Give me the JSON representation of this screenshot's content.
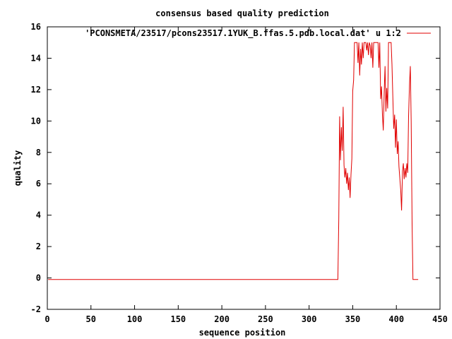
{
  "chart_data": {
    "type": "line",
    "title": "consensus based quality prediction",
    "xlabel": "sequence position",
    "ylabel": "quality",
    "xlim": [
      0,
      450
    ],
    "ylim": [
      -2,
      16
    ],
    "xticks": [
      0,
      50,
      100,
      150,
      200,
      250,
      300,
      350,
      400,
      450
    ],
    "yticks": [
      -2,
      0,
      2,
      4,
      6,
      8,
      10,
      12,
      14,
      16
    ],
    "grid": false,
    "legend": "top-right",
    "series": [
      {
        "name": "'PCONSMETA/23517/pcons23517.1YUK_B.ffas.5.pdb.local.dat' u 1:2",
        "color": "#e00000",
        "points": [
          [
            1,
            -0.1
          ],
          [
            333,
            -0.1
          ],
          [
            334,
            3.8
          ],
          [
            335,
            10.3
          ],
          [
            336,
            7.5
          ],
          [
            337,
            9.6
          ],
          [
            338,
            8.1
          ],
          [
            339,
            10.9
          ],
          [
            340,
            7.2
          ],
          [
            341,
            6.4
          ],
          [
            342,
            7.0
          ],
          [
            343,
            6.0
          ],
          [
            344,
            6.7
          ],
          [
            345,
            5.6
          ],
          [
            346,
            6.4
          ],
          [
            347,
            5.1
          ],
          [
            348,
            6.6
          ],
          [
            349,
            7.6
          ],
          [
            350,
            11.9
          ],
          [
            351,
            12.6
          ],
          [
            352,
            15.0
          ],
          [
            353,
            15.0
          ],
          [
            354,
            15.0
          ],
          [
            355,
            15.0
          ],
          [
            356,
            13.7
          ],
          [
            357,
            15.0
          ],
          [
            358,
            12.9
          ],
          [
            359,
            14.6
          ],
          [
            360,
            13.6
          ],
          [
            361,
            15.0
          ],
          [
            362,
            14.0
          ],
          [
            363,
            15.0
          ],
          [
            364,
            15.0
          ],
          [
            365,
            15.0
          ],
          [
            366,
            14.5
          ],
          [
            367,
            15.0
          ],
          [
            368,
            14.2
          ],
          [
            369,
            15.0
          ],
          [
            370,
            14.8
          ],
          [
            371,
            14.0
          ],
          [
            372,
            15.0
          ],
          [
            373,
            13.4
          ],
          [
            374,
            15.0
          ],
          [
            375,
            15.0
          ],
          [
            376,
            15.0
          ],
          [
            377,
            15.0
          ],
          [
            378,
            15.0
          ],
          [
            379,
            15.0
          ],
          [
            380,
            13.4
          ],
          [
            381,
            15.0
          ],
          [
            382,
            11.4
          ],
          [
            383,
            12.2
          ],
          [
            384,
            10.4
          ],
          [
            385,
            9.4
          ],
          [
            386,
            11.7
          ],
          [
            387,
            13.5
          ],
          [
            388,
            10.6
          ],
          [
            389,
            12.1
          ],
          [
            390,
            10.8
          ],
          [
            391,
            15.0
          ],
          [
            392,
            15.0
          ],
          [
            393,
            15.0
          ],
          [
            394,
            15.0
          ],
          [
            395,
            13.6
          ],
          [
            396,
            11.4
          ],
          [
            397,
            9.5
          ],
          [
            398,
            10.4
          ],
          [
            399,
            8.3
          ],
          [
            400,
            10.1
          ],
          [
            401,
            7.9
          ],
          [
            402,
            8.7
          ],
          [
            403,
            7.1
          ],
          [
            404,
            6.3
          ],
          [
            405,
            5.6
          ],
          [
            406,
            4.3
          ],
          [
            407,
            6.8
          ],
          [
            408,
            7.3
          ],
          [
            409,
            6.3
          ],
          [
            410,
            7.0
          ],
          [
            411,
            6.4
          ],
          [
            412,
            7.3
          ],
          [
            413,
            6.7
          ],
          [
            414,
            10.3
          ],
          [
            415,
            12.3
          ],
          [
            416,
            13.5
          ],
          [
            417,
            10.0
          ],
          [
            418,
            3.4
          ],
          [
            419,
            -0.1
          ],
          [
            425,
            -0.1
          ]
        ]
      }
    ]
  }
}
